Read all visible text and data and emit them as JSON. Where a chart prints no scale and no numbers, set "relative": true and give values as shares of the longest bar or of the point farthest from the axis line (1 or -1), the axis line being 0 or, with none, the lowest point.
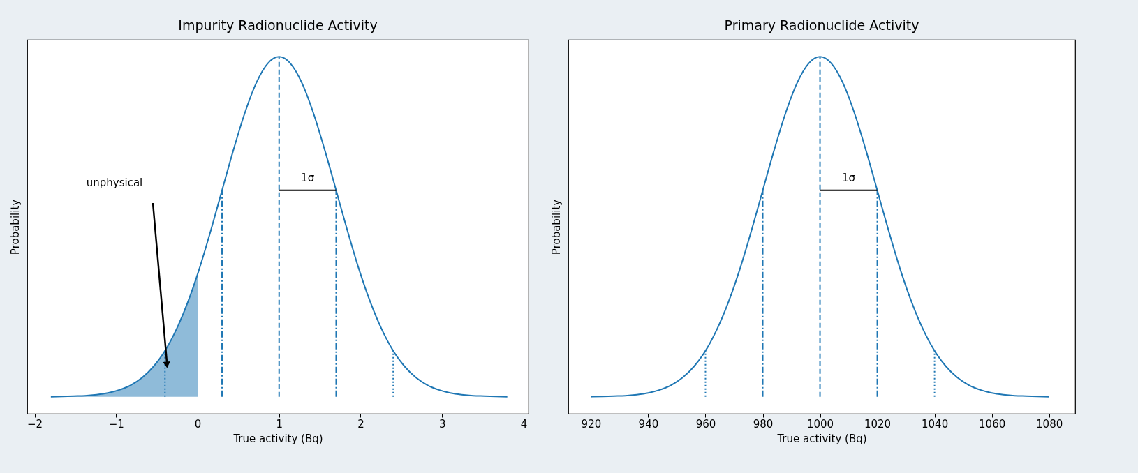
{
  "chart_data": [
    {
      "type": "line",
      "title": "Impurity Radionuclide Activity",
      "xlabel": "True activity (Bq)",
      "ylabel": "Probability",
      "relative": true,
      "xlim": [
        -2.09,
        4.06
      ],
      "xticks": [
        -2,
        -1,
        0,
        1,
        2,
        3,
        4
      ],
      "grid": false,
      "annotations": [
        "unphysical"
      ],
      "series": [
        {
          "type": "area",
          "color": "#8fbbd9",
          "x": [
            -1.8,
            -1.66,
            -1.52,
            -1.38,
            -1.24,
            -1.1,
            -0.96,
            -0.82,
            -0.68,
            -0.54,
            -0.4,
            -0.26,
            -0.12,
            0
          ],
          "values": [
            0,
            0.001,
            0.002,
            0.003,
            0.006,
            0.011,
            0.02,
            0.034,
            0.056,
            0.089,
            0.135,
            0.198,
            0.278,
            0.36
          ]
        },
        {
          "color": "#1f77b4",
          "line_style": "solid",
          "x": [
            -1.8,
            -1.66,
            -1.52,
            -1.38,
            -1.24,
            -1.1,
            -0.96,
            -0.82,
            -0.68,
            -0.54,
            -0.4,
            -0.26,
            -0.12,
            0.02,
            0.16,
            0.3,
            0.44,
            0.58,
            0.72,
            0.86,
            1,
            1.14,
            1.28,
            1.42,
            1.56,
            1.7,
            1.84,
            1.98,
            2.12,
            2.26,
            2.4,
            2.54,
            2.68,
            2.82,
            2.96,
            3.1,
            3.24,
            3.38,
            3.52,
            3.66,
            3.8
          ],
          "values": [
            0,
            0.001,
            0.002,
            0.003,
            0.006,
            0.011,
            0.02,
            0.034,
            0.056,
            0.089,
            0.135,
            0.198,
            0.278,
            0.375,
            0.487,
            0.607,
            0.726,
            0.835,
            0.923,
            0.98,
            1,
            0.98,
            0.923,
            0.835,
            0.726,
            0.607,
            0.487,
            0.375,
            0.278,
            0.198,
            0.135,
            0.089,
            0.056,
            0.034,
            0.02,
            0.011,
            0.006,
            0.003,
            0.002,
            0.001,
            0
          ]
        },
        {
          "color": "#1f77b4",
          "line_style": "dashed",
          "x": [
            1,
            1
          ],
          "values": [
            0,
            1
          ]
        },
        {
          "color": "#1f77b4",
          "line_style": "dashdot",
          "x": [
            0.3,
            0.3
          ],
          "values": [
            0,
            0.607
          ]
        },
        {
          "color": "#1f77b4",
          "line_style": "dashdot",
          "x": [
            1.7,
            1.7
          ],
          "values": [
            0,
            0.607
          ]
        },
        {
          "color": "#1f77b4",
          "line_style": "dotted",
          "x": [
            -0.4,
            -0.4
          ],
          "values": [
            0,
            0.135
          ]
        },
        {
          "color": "#1f77b4",
          "line_style": "dotted",
          "x": [
            2.4,
            2.4
          ],
          "values": [
            0,
            0.135
          ]
        },
        {
          "name": "1σ",
          "color": "#000000",
          "line_style": "solid",
          "x": [
            1,
            1.7
          ],
          "values": [
            0.607,
            0.607
          ]
        }
      ]
    },
    {
      "type": "line",
      "title": "Primary Radionuclide Activity",
      "xlabel": "True activity (Bq)",
      "ylabel": "Probability",
      "relative": true,
      "xlim": [
        912.1,
        1089.1
      ],
      "xticks": [
        920,
        940,
        960,
        980,
        1000,
        1020,
        1040,
        1060,
        1080
      ],
      "grid": false,
      "series": [
        {
          "color": "#1f77b4",
          "line_style": "solid",
          "x": [
            920,
            924,
            928,
            932,
            936,
            940,
            944,
            948,
            952,
            956,
            960,
            964,
            968,
            972,
            976,
            980,
            984,
            988,
            992,
            996,
            1000,
            1004,
            1008,
            1012,
            1016,
            1020,
            1024,
            1028,
            1032,
            1036,
            1040,
            1044,
            1048,
            1052,
            1056,
            1060,
            1064,
            1068,
            1072,
            1076,
            1080
          ],
          "values": [
            0,
            0.001,
            0.002,
            0.003,
            0.006,
            0.011,
            0.02,
            0.034,
            0.056,
            0.089,
            0.135,
            0.198,
            0.278,
            0.375,
            0.487,
            0.607,
            0.726,
            0.835,
            0.923,
            0.98,
            1,
            0.98,
            0.923,
            0.835,
            0.726,
            0.607,
            0.487,
            0.375,
            0.278,
            0.198,
            0.135,
            0.089,
            0.056,
            0.034,
            0.02,
            0.011,
            0.006,
            0.003,
            0.002,
            0.001,
            0
          ]
        },
        {
          "color": "#1f77b4",
          "line_style": "dashed",
          "x": [
            1000,
            1000
          ],
          "values": [
            0,
            1
          ]
        },
        {
          "color": "#1f77b4",
          "line_style": "dashdot",
          "x": [
            980,
            980
          ],
          "values": [
            0,
            0.607
          ]
        },
        {
          "color": "#1f77b4",
          "line_style": "dashdot",
          "x": [
            1020,
            1020
          ],
          "values": [
            0,
            0.607
          ]
        },
        {
          "color": "#1f77b4",
          "line_style": "dotted",
          "x": [
            960,
            960
          ],
          "values": [
            0,
            0.135
          ]
        },
        {
          "color": "#1f77b4",
          "line_style": "dotted",
          "x": [
            1040,
            1040
          ],
          "values": [
            0,
            0.135
          ]
        },
        {
          "name": "1σ",
          "color": "#000000",
          "line_style": "solid",
          "x": [
            1000,
            1020
          ],
          "values": [
            0.607,
            0.607
          ]
        }
      ]
    }
  ]
}
